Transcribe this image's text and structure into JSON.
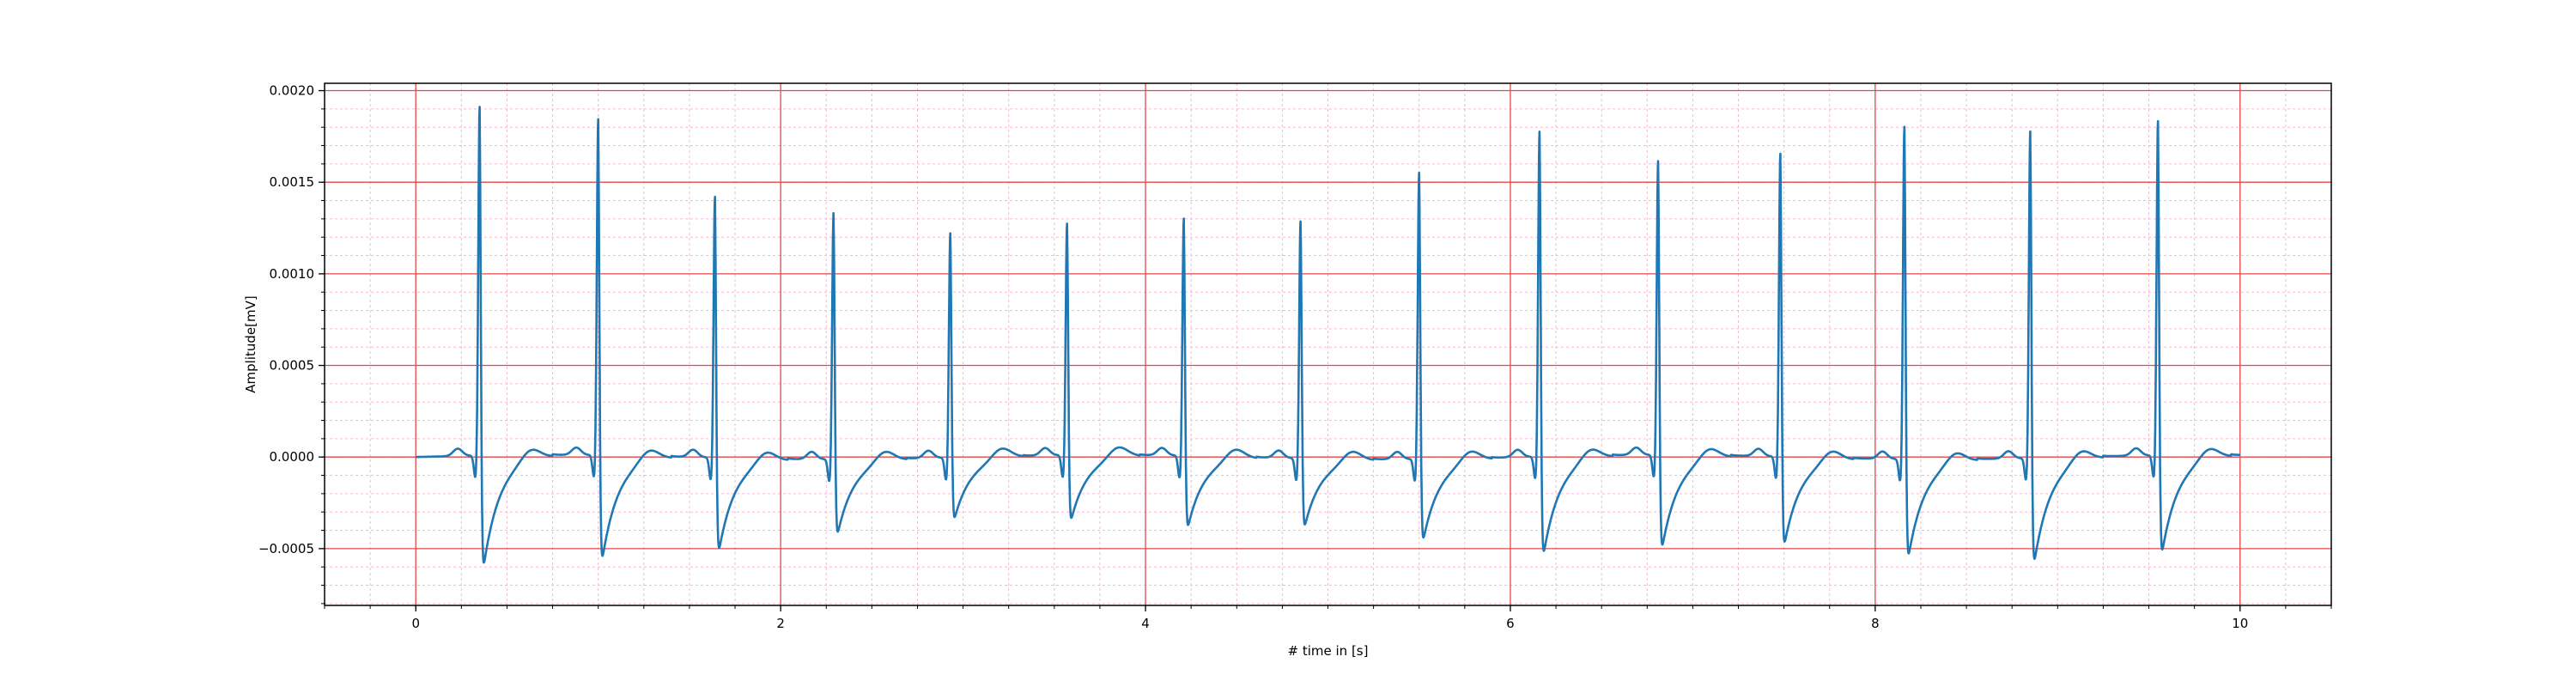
{
  "chart_data": {
    "type": "line",
    "title": "",
    "xlabel": "# time in [s]",
    "ylabel": "Amplitude[mV]",
    "xlim": [
      -0.5,
      10.5
    ],
    "ylim": [
      -0.00081,
      0.00204
    ],
    "x_ticks": [
      0,
      2,
      4,
      6,
      8,
      10
    ],
    "x_tick_labels": [
      "0",
      "2",
      "4",
      "6",
      "8",
      "10"
    ],
    "y_ticks": [
      -0.0005,
      0.0,
      0.0005,
      0.001,
      0.0015,
      0.002
    ],
    "y_tick_labels": [
      "−0.0005",
      "0.0000",
      "0.0005",
      "0.0010",
      "0.0015",
      "0.0020"
    ],
    "grid": {
      "major": true,
      "minor": true,
      "major_color": "#e34848",
      "minor_color": "#f4b8d6"
    },
    "line_color": "#1f77b4",
    "series": [
      {
        "beats": [
          {
            "t": 0.35,
            "peak": 0.00191,
            "trough": -0.00068
          },
          {
            "t": 1.0,
            "peak": 0.00184,
            "trough": -0.00064
          },
          {
            "t": 1.64,
            "peak": 0.00143,
            "trough": -0.00057
          },
          {
            "t": 2.29,
            "peak": 0.00135,
            "trough": -0.00046
          },
          {
            "t": 2.93,
            "peak": 0.00123,
            "trough": -0.00038
          },
          {
            "t": 3.57,
            "peak": 0.00127,
            "trough": -0.0004
          },
          {
            "t": 4.21,
            "peak": 0.0013,
            "trough": -0.00044
          },
          {
            "t": 4.85,
            "peak": 0.0013,
            "trough": -0.00042
          },
          {
            "t": 5.5,
            "peak": 0.00157,
            "trough": -0.0005
          },
          {
            "t": 6.16,
            "peak": 0.00178,
            "trough": -0.0006
          },
          {
            "t": 6.81,
            "peak": 0.00161,
            "trough": -0.00057
          },
          {
            "t": 7.48,
            "peak": 0.00166,
            "trough": -0.00054
          },
          {
            "t": 8.16,
            "peak": 0.00182,
            "trough": -0.0006
          },
          {
            "t": 8.85,
            "peak": 0.00179,
            "trough": -0.00064
          },
          {
            "t": 9.55,
            "peak": 0.00183,
            "trough": -0.0006
          }
        ],
        "t_start": 0,
        "t_end": 10,
        "baseline": 0.0
      }
    ]
  }
}
